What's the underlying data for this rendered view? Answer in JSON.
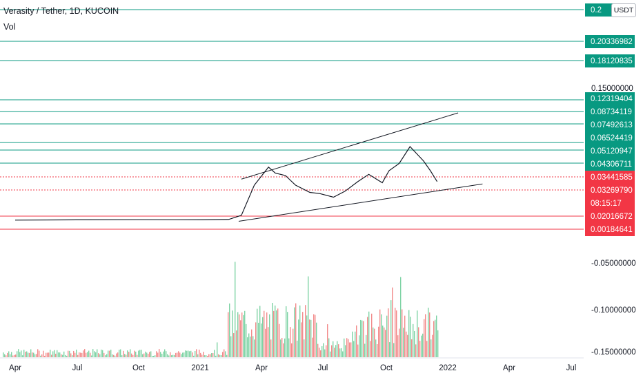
{
  "header": {
    "title": "Verasity / Tether, 1D, KUCOIN",
    "volume_label": "Vol"
  },
  "currency_button": "USDT",
  "colors": {
    "teal_line": "#089981",
    "red_line": "#f23645",
    "up_volume": "#7ed3a5",
    "down_volume": "#f28b8b",
    "trend_line": "#131722",
    "price": "#131722"
  },
  "chart_data": {
    "type": "line",
    "title": "Verasity / Tether, 1D, KUCOIN",
    "xlabel": "",
    "ylabel": "",
    "x_tick_labels": [
      "Apr",
      "Jul",
      "Oct",
      "2021",
      "Apr",
      "Jul",
      "Oct",
      "2022",
      "Apr",
      "Jul"
    ],
    "y_tick_labels": [
      "0.15000000",
      "-0.05000000",
      "-0.10000000",
      "-0.15000000"
    ],
    "ylim": [
      -0.15,
      0.15
    ],
    "price_series": {
      "x": [
        "2020-04-01",
        "2020-07-01",
        "2020-10-01",
        "2021-01-01",
        "2021-02-10",
        "2021-03-01",
        "2021-03-20",
        "2021-04-10",
        "2021-04-20",
        "2021-05-05",
        "2021-05-20",
        "2021-06-10",
        "2021-06-25",
        "2021-07-15",
        "2021-08-01",
        "2021-08-20",
        "2021-09-05",
        "2021-09-25",
        "2021-10-05",
        "2021-10-20",
        "2021-11-05",
        "2021-11-15",
        "2021-11-25",
        "2021-12-05",
        "2021-12-15"
      ],
      "y": [
        0.001,
        0.0012,
        0.0013,
        0.0012,
        0.0015,
        0.005,
        0.03,
        0.045,
        0.04,
        0.038,
        0.03,
        0.024,
        0.023,
        0.02,
        0.025,
        0.033,
        0.039,
        0.032,
        0.042,
        0.048,
        0.062,
        0.056,
        0.05,
        0.042,
        0.033
      ]
    },
    "horizontal_levels": [
      {
        "price_label": "0.2",
        "color": "teal"
      },
      {
        "price_label": "0.20336982",
        "color": "teal"
      },
      {
        "price_label": "0.18120835",
        "color": "teal"
      },
      {
        "price_label": "0.12319404",
        "color": "teal"
      },
      {
        "price_label": "0.08734119",
        "color": "teal"
      },
      {
        "price_label": "0.07492613",
        "color": "teal"
      },
      {
        "price_label": "0.06524419",
        "color": "teal"
      },
      {
        "price_label": "0.05120947",
        "color": "teal"
      },
      {
        "price_label": "0.04306711",
        "color": "teal"
      },
      {
        "price_label": "0.03441585",
        "color": "red"
      },
      {
        "price_label": "0.03269790",
        "color": "red"
      },
      {
        "price_label": "08:15:17",
        "color": "red"
      },
      {
        "price_label": "0.02016672",
        "color": "red"
      },
      {
        "price_label": "0.00184641",
        "color": "red"
      }
    ],
    "trend_lines": [
      {
        "name": "upper channel",
        "start": [
          "2021-03-01",
          0.035
        ],
        "end": [
          "2022-01-15",
          0.09
        ]
      },
      {
        "name": "lower channel",
        "start": [
          "2021-02-25",
          0.0
        ],
        "end": [
          "2022-02-20",
          0.031
        ]
      }
    ],
    "grid": false,
    "legend": "none"
  }
}
